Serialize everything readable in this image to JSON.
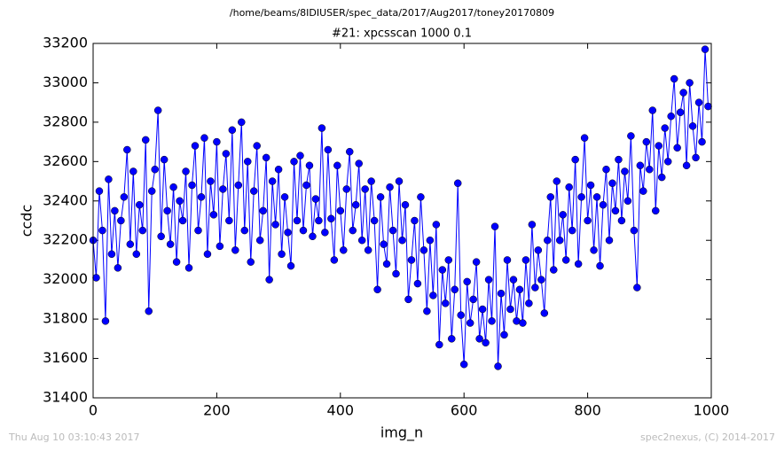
{
  "chart_data": {
    "type": "line",
    "suptitle": "/home/beams/8IDIUSER/spec_data/2017/Aug2017/toney20170809",
    "title": "#21: xpcsscan 1000 0.1",
    "xlabel": "img_n",
    "ylabel": "ccdc",
    "footer_left": "Thu Aug 10 03:10:43 2017",
    "footer_right": "spec2nexus, (C) 2014-2017",
    "color": "#0000ff",
    "xlim": [
      0,
      1000
    ],
    "xticks": [
      0,
      200,
      400,
      600,
      800,
      1000
    ],
    "ylim": [
      31400,
      33200
    ],
    "yticks": [
      31400,
      31600,
      31800,
      32000,
      32200,
      32400,
      32600,
      32800,
      33000,
      33200
    ],
    "x": [
      0,
      5,
      10,
      15,
      20,
      25,
      30,
      35,
      40,
      45,
      50,
      55,
      60,
      65,
      70,
      75,
      80,
      85,
      90,
      95,
      100,
      105,
      110,
      115,
      120,
      125,
      130,
      135,
      140,
      145,
      150,
      155,
      160,
      165,
      170,
      175,
      180,
      185,
      190,
      195,
      200,
      205,
      210,
      215,
      220,
      225,
      230,
      235,
      240,
      245,
      250,
      255,
      260,
      265,
      270,
      275,
      280,
      285,
      290,
      295,
      300,
      305,
      310,
      315,
      320,
      325,
      330,
      335,
      340,
      345,
      350,
      355,
      360,
      365,
      370,
      375,
      380,
      385,
      390,
      395,
      400,
      405,
      410,
      415,
      420,
      425,
      430,
      435,
      440,
      445,
      450,
      455,
      460,
      465,
      470,
      475,
      480,
      485,
      490,
      495,
      500,
      505,
      510,
      515,
      520,
      525,
      530,
      535,
      540,
      545,
      550,
      555,
      560,
      565,
      570,
      575,
      580,
      585,
      590,
      595,
      600,
      605,
      610,
      615,
      620,
      625,
      630,
      635,
      640,
      645,
      650,
      655,
      660,
      665,
      670,
      675,
      680,
      685,
      690,
      695,
      700,
      705,
      710,
      715,
      720,
      725,
      730,
      735,
      740,
      745,
      750,
      755,
      760,
      765,
      770,
      775,
      780,
      785,
      790,
      795,
      800,
      805,
      810,
      815,
      820,
      825,
      830,
      835,
      840,
      845,
      850,
      855,
      860,
      865,
      870,
      875,
      880,
      885,
      890,
      895,
      900,
      905,
      910,
      915,
      920,
      925,
      930,
      935,
      940,
      945,
      950,
      955,
      960,
      965,
      970,
      975,
      980,
      985,
      990,
      995
    ],
    "values": [
      32200,
      32010,
      32450,
      32250,
      31790,
      32510,
      32130,
      32350,
      32060,
      32300,
      32420,
      32660,
      32180,
      32550,
      32130,
      32380,
      32250,
      32710,
      31840,
      32450,
      32560,
      32860,
      32220,
      32610,
      32350,
      32180,
      32470,
      32090,
      32400,
      32300,
      32550,
      32060,
      32480,
      32680,
      32250,
      32420,
      32720,
      32130,
      32500,
      32330,
      32700,
      32170,
      32460,
      32640,
      32300,
      32760,
      32150,
      32480,
      32800,
      32250,
      32600,
      32090,
      32450,
      32680,
      32200,
      32350,
      32620,
      32000,
      32500,
      32280,
      32560,
      32130,
      32420,
      32240,
      32070,
      32600,
      32300,
      32630,
      32250,
      32480,
      32580,
      32220,
      32410,
      32300,
      32770,
      32240,
      32660,
      32310,
      32100,
      32580,
      32350,
      32150,
      32460,
      32650,
      32250,
      32380,
      32590,
      32200,
      32460,
      32150,
      32500,
      32300,
      31950,
      32420,
      32180,
      32080,
      32470,
      32250,
      32030,
      32500,
      32200,
      32380,
      31900,
      32100,
      32300,
      31980,
      32420,
      32150,
      31840,
      32200,
      31920,
      32280,
      31670,
      32050,
      31880,
      32100,
      31700,
      31950,
      32490,
      31820,
      31570,
      31990,
      31780,
      31900,
      32090,
      31700,
      31850,
      31680,
      32000,
      31790,
      32270,
      31560,
      31930,
      31720,
      32100,
      31850,
      32000,
      31790,
      31950,
      31780,
      32100,
      31880,
      32280,
      31960,
      32150,
      32000,
      31830,
      32200,
      32420,
      32050,
      32500,
      32200,
      32330,
      32100,
      32470,
      32250,
      32610,
      32080,
      32420,
      32720,
      32300,
      32480,
      32150,
      32420,
      32070,
      32380,
      32560,
      32200,
      32490,
      32350,
      32610,
      32300,
      32550,
      32400,
      32730,
      32250,
      31960,
      32580,
      32450,
      32700,
      32560,
      32860,
      32350,
      32680,
      32520,
      32770,
      32600,
      32830,
      33020,
      32670,
      32850,
      32950,
      32580,
      33000,
      32780,
      32620,
      32900,
      32700,
      33170,
      32880
    ]
  }
}
